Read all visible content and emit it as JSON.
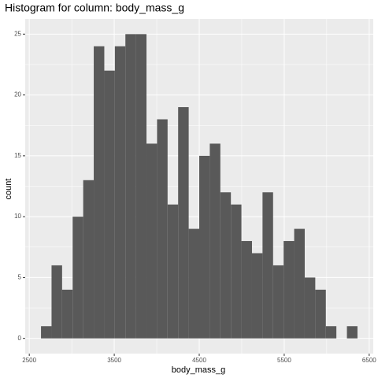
{
  "chart_data": {
    "type": "histogram",
    "title": "Histogram for column: body_mass_g",
    "x_label": "body_mass_g",
    "y_label": "count",
    "bins": [
      2637.9,
      2762.1,
      2886.2,
      3010.3,
      3134.5,
      3258.6,
      3382.8,
      3506.9,
      3631.0,
      3755.2,
      3879.3,
      4003.4,
      4127.6,
      4251.7,
      4375.9,
      4500.0,
      4624.1,
      4748.3,
      4872.4,
      4996.6,
      5120.7,
      5244.8,
      5369.0,
      5493.1,
      5617.2,
      5741.4,
      5865.5,
      5989.7,
      6113.8,
      6237.9,
      6362.1
    ],
    "values": [
      1,
      6,
      4,
      10,
      13,
      24,
      22,
      24,
      25,
      25,
      16,
      18,
      11,
      19,
      9,
      15,
      16,
      12,
      11,
      8,
      7,
      12,
      6,
      8,
      9,
      5,
      4,
      1,
      0,
      1
    ],
    "color": "#595959",
    "xlim": [
      2452,
      6548
    ],
    "xticks": [
      2500,
      3500,
      4500,
      5500,
      6500
    ],
    "xminor": [
      3000,
      4000,
      5000,
      6000
    ],
    "ylim": [
      -1.25,
      26.25
    ],
    "yticks": [
      0,
      5,
      10,
      15,
      20,
      25
    ],
    "yminor": [
      2.5,
      7.5,
      12.5,
      17.5,
      22.5
    ],
    "grid": true
  }
}
